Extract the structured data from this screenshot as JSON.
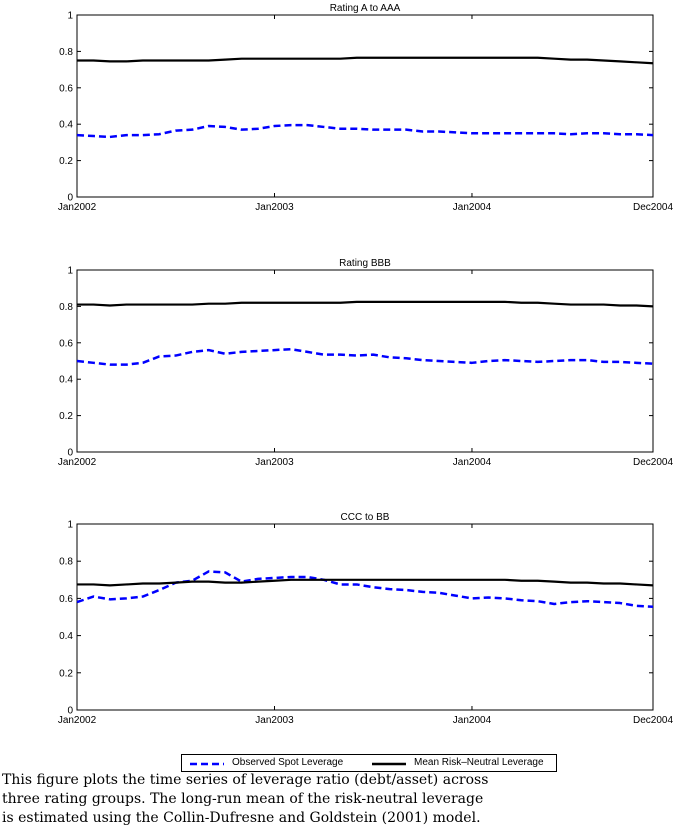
{
  "chart_data": [
    {
      "type": "line",
      "title": "Rating A to AAA",
      "x_ticks": [
        "Jan2002",
        "Jan2003",
        "Jan2004",
        "Dec2004"
      ],
      "xlim": [
        "Jan2002",
        "Dec2004"
      ],
      "ylim": [
        0,
        1
      ],
      "y_ticks": [
        "0",
        "0.2",
        "0.4",
        "0.6",
        "0.8",
        "1"
      ],
      "x": [
        "2002-01",
        "2002-02",
        "2002-03",
        "2002-04",
        "2002-05",
        "2002-06",
        "2002-07",
        "2002-08",
        "2002-09",
        "2002-10",
        "2002-11",
        "2002-12",
        "2003-01",
        "2003-02",
        "2003-03",
        "2003-04",
        "2003-05",
        "2003-06",
        "2003-07",
        "2003-08",
        "2003-09",
        "2003-10",
        "2003-11",
        "2003-12",
        "2004-01",
        "2004-02",
        "2004-03",
        "2004-04",
        "2004-05",
        "2004-06",
        "2004-07",
        "2004-08",
        "2004-09",
        "2004-10",
        "2004-11",
        "2004-12"
      ],
      "series": [
        {
          "name": "Observed Spot Leverage",
          "values": [
            0.34,
            0.335,
            0.33,
            0.34,
            0.34,
            0.345,
            0.365,
            0.37,
            0.39,
            0.385,
            0.37,
            0.375,
            0.39,
            0.395,
            0.395,
            0.385,
            0.375,
            0.375,
            0.37,
            0.37,
            0.37,
            0.36,
            0.36,
            0.355,
            0.35,
            0.35,
            0.35,
            0.35,
            0.35,
            0.35,
            0.345,
            0.35,
            0.35,
            0.345,
            0.345,
            0.34
          ]
        },
        {
          "name": "Mean Risk-Neutral Leverage",
          "values": [
            0.75,
            0.75,
            0.745,
            0.745,
            0.75,
            0.75,
            0.75,
            0.75,
            0.75,
            0.755,
            0.76,
            0.76,
            0.76,
            0.76,
            0.76,
            0.76,
            0.76,
            0.765,
            0.765,
            0.765,
            0.765,
            0.765,
            0.765,
            0.765,
            0.765,
            0.765,
            0.765,
            0.765,
            0.765,
            0.76,
            0.755,
            0.755,
            0.75,
            0.745,
            0.74,
            0.735
          ]
        }
      ]
    },
    {
      "type": "line",
      "title": "Rating BBB",
      "x_ticks": [
        "Jan2002",
        "Jan2003",
        "Jan2004",
        "Dec2004"
      ],
      "xlim": [
        "Jan2002",
        "Dec2004"
      ],
      "ylim": [
        0,
        1
      ],
      "y_ticks": [
        "0",
        "0.2",
        "0.4",
        "0.6",
        "0.8",
        "1"
      ],
      "x": [
        "2002-01",
        "2002-02",
        "2002-03",
        "2002-04",
        "2002-05",
        "2002-06",
        "2002-07",
        "2002-08",
        "2002-09",
        "2002-10",
        "2002-11",
        "2002-12",
        "2003-01",
        "2003-02",
        "2003-03",
        "2003-04",
        "2003-05",
        "2003-06",
        "2003-07",
        "2003-08",
        "2003-09",
        "2003-10",
        "2003-11",
        "2003-12",
        "2004-01",
        "2004-02",
        "2004-03",
        "2004-04",
        "2004-05",
        "2004-06",
        "2004-07",
        "2004-08",
        "2004-09",
        "2004-10",
        "2004-11",
        "2004-12"
      ],
      "series": [
        {
          "name": "Observed Spot Leverage",
          "values": [
            0.5,
            0.49,
            0.48,
            0.48,
            0.49,
            0.525,
            0.53,
            0.55,
            0.56,
            0.54,
            0.55,
            0.555,
            0.56,
            0.565,
            0.55,
            0.535,
            0.535,
            0.53,
            0.535,
            0.52,
            0.515,
            0.505,
            0.5,
            0.495,
            0.49,
            0.5,
            0.505,
            0.5,
            0.495,
            0.5,
            0.505,
            0.505,
            0.495,
            0.495,
            0.49,
            0.485
          ]
        },
        {
          "name": "Mean Risk-Neutral Leverage",
          "values": [
            0.81,
            0.81,
            0.805,
            0.81,
            0.81,
            0.81,
            0.81,
            0.81,
            0.815,
            0.815,
            0.82,
            0.82,
            0.82,
            0.82,
            0.82,
            0.82,
            0.82,
            0.825,
            0.825,
            0.825,
            0.825,
            0.825,
            0.825,
            0.825,
            0.825,
            0.825,
            0.825,
            0.82,
            0.82,
            0.815,
            0.81,
            0.81,
            0.81,
            0.805,
            0.805,
            0.8
          ]
        }
      ]
    },
    {
      "type": "line",
      "title": "CCC to BB",
      "x_ticks": [
        "Jan2002",
        "Jan2003",
        "Jan2004",
        "Dec2004"
      ],
      "xlim": [
        "Jan2002",
        "Dec2004"
      ],
      "ylim": [
        0,
        1
      ],
      "y_ticks": [
        "0",
        "0.2",
        "0.4",
        "0.6",
        "0.8",
        "1"
      ],
      "x": [
        "2002-01",
        "2002-02",
        "2002-03",
        "2002-04",
        "2002-05",
        "2002-06",
        "2002-07",
        "2002-08",
        "2002-09",
        "2002-10",
        "2002-11",
        "2002-12",
        "2003-01",
        "2003-02",
        "2003-03",
        "2003-04",
        "2003-05",
        "2003-06",
        "2003-07",
        "2003-08",
        "2003-09",
        "2003-10",
        "2003-11",
        "2003-12",
        "2004-01",
        "2004-02",
        "2004-03",
        "2004-04",
        "2004-05",
        "2004-06",
        "2004-07",
        "2004-08",
        "2004-09",
        "2004-10",
        "2004-11",
        "2004-12"
      ],
      "series": [
        {
          "name": "Observed Spot Leverage",
          "values": [
            0.58,
            0.61,
            0.595,
            0.6,
            0.61,
            0.645,
            0.685,
            0.695,
            0.745,
            0.74,
            0.69,
            0.705,
            0.71,
            0.715,
            0.715,
            0.7,
            0.675,
            0.675,
            0.66,
            0.65,
            0.645,
            0.635,
            0.63,
            0.615,
            0.6,
            0.605,
            0.6,
            0.59,
            0.585,
            0.57,
            0.58,
            0.585,
            0.58,
            0.575,
            0.56,
            0.555
          ]
        },
        {
          "name": "Mean Risk-Neutral Leverage",
          "values": [
            0.675,
            0.675,
            0.67,
            0.675,
            0.68,
            0.68,
            0.685,
            0.69,
            0.69,
            0.685,
            0.685,
            0.69,
            0.695,
            0.7,
            0.7,
            0.7,
            0.7,
            0.7,
            0.7,
            0.7,
            0.7,
            0.7,
            0.7,
            0.7,
            0.7,
            0.7,
            0.7,
            0.695,
            0.695,
            0.69,
            0.685,
            0.685,
            0.68,
            0.68,
            0.675,
            0.67
          ]
        }
      ]
    }
  ],
  "colors": {
    "observed": "#0000ff",
    "mean": "#000000"
  },
  "legend": {
    "observed_label": "Observed Spot Leverage",
    "mean_label": "Mean Risk–Neutral Leverage"
  },
  "caption": {
    "lines": [
      "This figure plots the time series of leverage ratio (debt/asset) across",
      "three rating groups. The long-run mean of the risk-neutral leverage",
      "is estimated using the Collin-Dufresne and Goldstein (2001) model."
    ]
  }
}
